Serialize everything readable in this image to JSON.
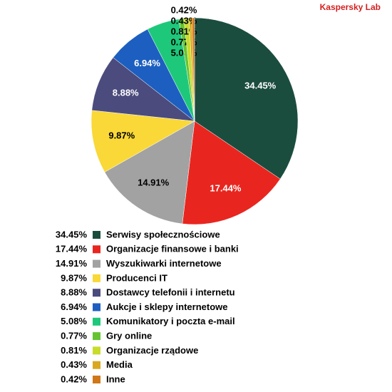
{
  "chart_data": {
    "type": "pie",
    "source": "Kaspersky Lab",
    "categories": [
      "Serwisy społecznościowe",
      "Organizacje finansowe i banki",
      "Wyszukiwarki internetowe",
      "Producenci IT",
      "Dostawcy telefonii i internetu",
      "Aukcje i sklepy internetowe",
      "Komunikatory i poczta e-mail",
      "Gry online",
      "Organizacje rządowe",
      "Media",
      "Inne"
    ],
    "values": [
      34.45,
      17.44,
      14.91,
      9.87,
      8.88,
      6.94,
      5.08,
      0.77,
      0.81,
      0.43,
      0.42
    ],
    "value_labels": [
      "34.45%",
      "17.44%",
      "14.91%",
      "9.87%",
      "8.88%",
      "6.94%",
      "5.08%",
      "0.77%",
      "0.81%",
      "0.43%",
      "0.42%"
    ],
    "colors": [
      "#1b4d3e",
      "#e8261f",
      "#a2a2a2",
      "#f9d838",
      "#4b4b7d",
      "#1d5fc0",
      "#1ec87a",
      "#66c433",
      "#c8dc2a",
      "#d8a820",
      "#d07818"
    ]
  }
}
